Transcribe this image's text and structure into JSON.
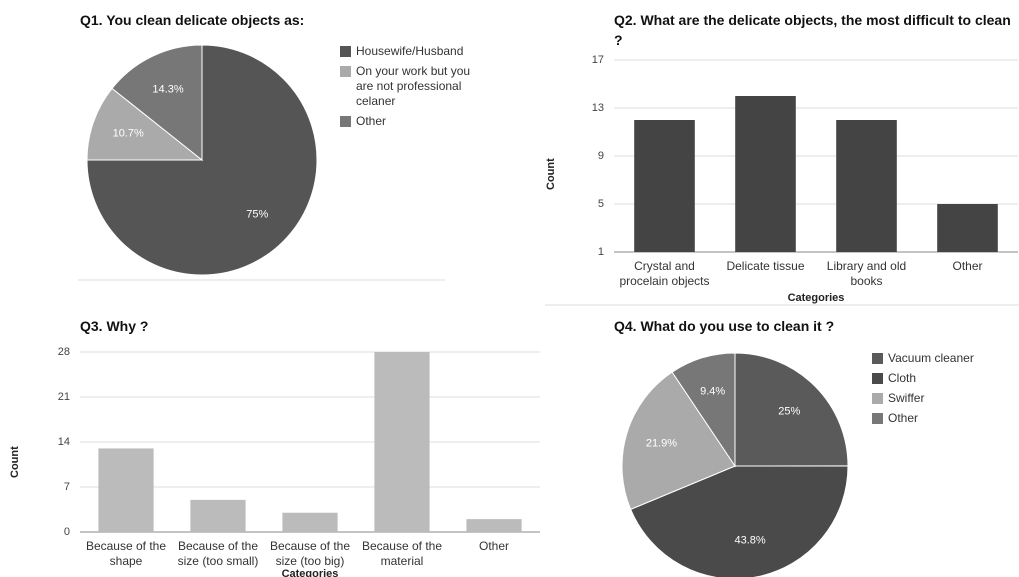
{
  "chart_data": [
    {
      "type": "pie",
      "title": "Q1. You clean delicate objects as:",
      "categories": [
        "Housewife/Husband",
        "On your work but you are not professional celaner",
        "Other"
      ],
      "values": [
        75,
        10.7,
        14.3
      ],
      "value_labels": [
        "75%",
        "10.7%",
        "14.3%"
      ],
      "colors": [
        "#555555",
        "#aaaaaa",
        "#777777"
      ]
    },
    {
      "type": "bar",
      "title": "Q2. What are the delicate objects, the most difficult to clean ?",
      "categories": [
        "Crystal and procelain objects",
        "Delicate tissue",
        "Library and old books",
        "Other"
      ],
      "values": [
        12,
        14,
        12,
        5
      ],
      "color": "#444444",
      "ylim": [
        1,
        17
      ],
      "yticks": [
        1,
        5,
        9,
        13,
        17
      ],
      "grid": true,
      "x_label": "Categories",
      "y_label": "Count"
    },
    {
      "type": "bar",
      "title": "Q3. Why ?",
      "categories": [
        "Because of the shape",
        "Because of the size (too small)",
        "Because of the size (too big)",
        "Because of the material",
        "Other"
      ],
      "values": [
        13,
        5,
        3,
        28,
        2
      ],
      "color": "#bbbbbb",
      "ylim": [
        0,
        28
      ],
      "yticks": [
        0,
        7,
        14,
        21,
        28
      ],
      "grid": true,
      "x_label": "Categories",
      "y_label": "Count"
    },
    {
      "type": "pie",
      "title": "Q4. What do you use to clean it ?",
      "categories": [
        "Vacuum cleaner",
        "Cloth",
        "Swiffer",
        "Other"
      ],
      "values": [
        25,
        43.8,
        21.9,
        9.4
      ],
      "value_labels": [
        "25%",
        "43.8%",
        "21.9%",
        "9.4%"
      ],
      "colors": [
        "#5a5a5a",
        "#4a4a4a",
        "#aaaaaa",
        "#777777"
      ]
    }
  ]
}
